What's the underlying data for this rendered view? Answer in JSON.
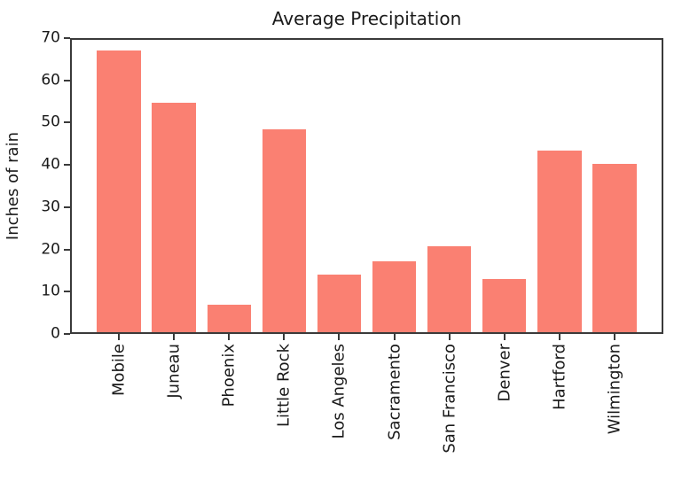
{
  "chart_data": {
    "type": "bar",
    "title": "Average Precipitation",
    "ylabel": "Inches of rain",
    "xlabel": "",
    "categories": [
      "Mobile",
      "Juneau",
      "Phoenix",
      "Little Rock",
      "Los Angeles",
      "Sacramento",
      "San Francisco",
      "Denver",
      "Hartford",
      "Wilmington"
    ],
    "values": [
      67,
      54.7,
      7,
      48.5,
      14,
      17.2,
      20.7,
      13,
      43.4,
      40.2
    ],
    "ylim": [
      0,
      70
    ],
    "yticks": [
      0,
      10,
      20,
      30,
      40,
      50,
      60,
      70
    ],
    "x_tick_rotation": 90,
    "grid": false,
    "legend": false,
    "bar_color": "#fa8072",
    "axis_color": "#3a3a3a",
    "text_color": "#1a1a1a"
  }
}
